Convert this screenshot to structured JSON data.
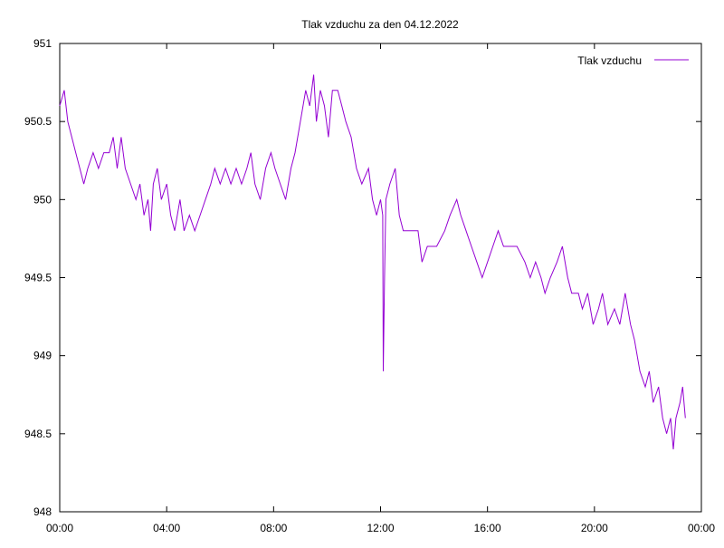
{
  "chart_data": {
    "type": "line",
    "title": "Tlak vzduchu za den 04.12.2022",
    "xlabel": "",
    "ylabel": "",
    "x_ticks": [
      "00:00",
      "04:00",
      "08:00",
      "12:00",
      "16:00",
      "20:00",
      "00:00"
    ],
    "y_ticks": [
      "948",
      "948.5",
      "949",
      "949.5",
      "950",
      "950.5",
      "951"
    ],
    "xlim_hours": [
      0,
      24
    ],
    "ylim": [
      948,
      951
    ],
    "grid": false,
    "legend_position": "top-right",
    "series": [
      {
        "name": "Tlak vzduchu",
        "color": "#9400d3",
        "points": [
          [
            0.0,
            950.6
          ],
          [
            0.17,
            950.7
          ],
          [
            0.3,
            950.5
          ],
          [
            0.45,
            950.4
          ],
          [
            0.6,
            950.3
          ],
          [
            0.75,
            950.2
          ],
          [
            0.9,
            950.1
          ],
          [
            1.05,
            950.2
          ],
          [
            1.25,
            950.3
          ],
          [
            1.45,
            950.2
          ],
          [
            1.65,
            950.3
          ],
          [
            1.85,
            950.3
          ],
          [
            2.0,
            950.4
          ],
          [
            2.15,
            950.2
          ],
          [
            2.3,
            950.4
          ],
          [
            2.45,
            950.2
          ],
          [
            2.65,
            950.1
          ],
          [
            2.85,
            950.0
          ],
          [
            3.0,
            950.1
          ],
          [
            3.15,
            949.9
          ],
          [
            3.3,
            950.0
          ],
          [
            3.4,
            949.8
          ],
          [
            3.5,
            950.1
          ],
          [
            3.65,
            950.2
          ],
          [
            3.8,
            950.0
          ],
          [
            4.0,
            950.1
          ],
          [
            4.15,
            949.9
          ],
          [
            4.3,
            949.8
          ],
          [
            4.5,
            950.0
          ],
          [
            4.65,
            949.8
          ],
          [
            4.85,
            949.9
          ],
          [
            5.05,
            949.8
          ],
          [
            5.25,
            949.9
          ],
          [
            5.45,
            950.0
          ],
          [
            5.65,
            950.1
          ],
          [
            5.8,
            950.2
          ],
          [
            6.0,
            950.1
          ],
          [
            6.2,
            950.2
          ],
          [
            6.4,
            950.1
          ],
          [
            6.6,
            950.2
          ],
          [
            6.8,
            950.1
          ],
          [
            7.0,
            950.2
          ],
          [
            7.15,
            950.3
          ],
          [
            7.3,
            950.1
          ],
          [
            7.5,
            950.0
          ],
          [
            7.7,
            950.2
          ],
          [
            7.9,
            950.3
          ],
          [
            8.05,
            950.2
          ],
          [
            8.25,
            950.1
          ],
          [
            8.45,
            950.0
          ],
          [
            8.65,
            950.2
          ],
          [
            8.8,
            950.3
          ],
          [
            9.0,
            950.5
          ],
          [
            9.2,
            950.7
          ],
          [
            9.35,
            950.6
          ],
          [
            9.5,
            950.8
          ],
          [
            9.6,
            950.5
          ],
          [
            9.75,
            950.7
          ],
          [
            9.9,
            950.6
          ],
          [
            10.05,
            950.4
          ],
          [
            10.2,
            950.7
          ],
          [
            10.4,
            950.7
          ],
          [
            10.55,
            950.6
          ],
          [
            10.7,
            950.5
          ],
          [
            10.9,
            950.4
          ],
          [
            11.1,
            950.2
          ],
          [
            11.3,
            950.1
          ],
          [
            11.55,
            950.2
          ],
          [
            11.7,
            950.0
          ],
          [
            11.85,
            949.9
          ],
          [
            12.0,
            950.0
          ],
          [
            12.08,
            949.9
          ],
          [
            12.1,
            948.9
          ],
          [
            12.15,
            949.5
          ],
          [
            12.2,
            950.0
          ],
          [
            12.35,
            950.1
          ],
          [
            12.55,
            950.2
          ],
          [
            12.7,
            949.9
          ],
          [
            12.85,
            949.8
          ],
          [
            13.1,
            949.8
          ],
          [
            13.4,
            949.8
          ],
          [
            13.55,
            949.6
          ],
          [
            13.75,
            949.7
          ],
          [
            14.1,
            949.7
          ],
          [
            14.4,
            949.8
          ],
          [
            14.6,
            949.9
          ],
          [
            14.85,
            950.0
          ],
          [
            15.0,
            949.9
          ],
          [
            15.2,
            949.8
          ],
          [
            15.4,
            949.7
          ],
          [
            15.6,
            949.6
          ],
          [
            15.8,
            949.5
          ],
          [
            16.0,
            949.6
          ],
          [
            16.2,
            949.7
          ],
          [
            16.4,
            949.8
          ],
          [
            16.6,
            949.7
          ],
          [
            16.8,
            949.7
          ],
          [
            17.1,
            949.7
          ],
          [
            17.4,
            949.6
          ],
          [
            17.6,
            949.5
          ],
          [
            17.8,
            949.6
          ],
          [
            18.0,
            949.5
          ],
          [
            18.15,
            949.4
          ],
          [
            18.35,
            949.5
          ],
          [
            18.6,
            949.6
          ],
          [
            18.8,
            949.7
          ],
          [
            19.0,
            949.5
          ],
          [
            19.15,
            949.4
          ],
          [
            19.4,
            949.4
          ],
          [
            19.55,
            949.3
          ],
          [
            19.75,
            949.4
          ],
          [
            19.95,
            949.2
          ],
          [
            20.15,
            949.3
          ],
          [
            20.3,
            949.4
          ],
          [
            20.5,
            949.2
          ],
          [
            20.75,
            949.3
          ],
          [
            20.95,
            949.2
          ],
          [
            21.15,
            949.4
          ],
          [
            21.35,
            949.2
          ],
          [
            21.5,
            949.1
          ],
          [
            21.7,
            948.9
          ],
          [
            21.9,
            948.8
          ],
          [
            22.05,
            948.9
          ],
          [
            22.2,
            948.7
          ],
          [
            22.4,
            948.8
          ],
          [
            22.55,
            948.6
          ],
          [
            22.7,
            948.5
          ],
          [
            22.85,
            948.6
          ],
          [
            22.95,
            948.4
          ],
          [
            23.05,
            948.6
          ],
          [
            23.2,
            948.7
          ],
          [
            23.3,
            948.8
          ],
          [
            23.4,
            948.6
          ]
        ]
      }
    ]
  }
}
